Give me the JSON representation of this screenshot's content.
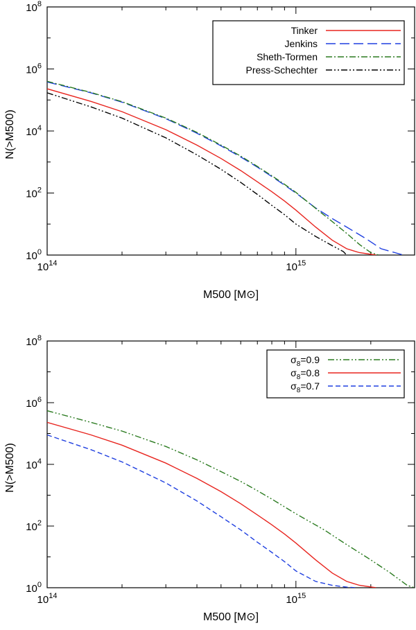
{
  "chart_data": [
    {
      "type": "line",
      "xscale": "log",
      "yscale": "log",
      "xlim": [
        100000000000000.0,
        3000000000000000.0
      ],
      "ylim": [
        1,
        100000000.0
      ],
      "xlabel": "M500 [M⊙]",
      "ylabel": "N(>M500)",
      "x_ticks": [
        {
          "base": "10",
          "exp": "14",
          "value": 100000000000000.0
        },
        {
          "base": "10",
          "exp": "15",
          "value": 1000000000000000.0
        }
      ],
      "y_ticks": [
        {
          "base": "10",
          "exp": "0",
          "value": 1
        },
        {
          "base": "10",
          "exp": "2",
          "value": 100
        },
        {
          "base": "10",
          "exp": "4",
          "value": 10000
        },
        {
          "base": "10",
          "exp": "6",
          "value": 1000000
        },
        {
          "base": "10",
          "exp": "8",
          "value": 100000000
        }
      ],
      "legend_position": "top-right",
      "series": [
        {
          "name": "Tinker",
          "color": "#e8251f",
          "dash": "solid",
          "x": [
            100000000000000.0,
            150000000000000.0,
            200000000000000.0,
            300000000000000.0,
            400000000000000.0,
            500000000000000.0,
            600000000000000.0,
            700000000000000.0,
            800000000000000.0,
            900000000000000.0,
            1000000000000000.0,
            1200000000000000.0,
            1400000000000000.0,
            1600000000000000.0,
            1800000000000000.0,
            2100000000000000.0
          ],
          "y": [
            230000,
            90000,
            42000,
            11000,
            3500,
            1300,
            530,
            230,
            110,
            55,
            28,
            8,
            3,
            1.6,
            1.2,
            1
          ]
        },
        {
          "name": "Jenkins",
          "color": "#1f3fe0",
          "dash": "long-dash",
          "x": [
            100000000000000.0,
            150000000000000.0,
            200000000000000.0,
            300000000000000.0,
            400000000000000.0,
            500000000000000.0,
            600000000000000.0,
            700000000000000.0,
            800000000000000.0,
            900000000000000.0,
            1000000000000000.0,
            1200000000000000.0,
            1400000000000000.0,
            1600000000000000.0,
            1900000000000000.0,
            2200000000000000.0,
            2500000000000000.0,
            2700000000000000.0
          ],
          "y": [
            380000,
            170000,
            85000,
            25000,
            8500,
            3300,
            1450,
            680,
            340,
            180,
            100,
            33,
            15,
            8,
            3.5,
            1.6,
            1.2,
            1
          ]
        },
        {
          "name": "Sheth-Tormen",
          "color": "#2a7a1f",
          "dash": "dash-dot",
          "x": [
            100000000000000.0,
            150000000000000.0,
            200000000000000.0,
            300000000000000.0,
            400000000000000.0,
            500000000000000.0,
            600000000000000.0,
            700000000000000.0,
            800000000000000.0,
            900000000000000.0,
            1000000000000000.0,
            1200000000000000.0,
            1400000000000000.0,
            1600000000000000.0,
            1800000000000000.0,
            2000000000000000.0,
            2150000000000000.0
          ],
          "y": [
            400000,
            175000,
            88000,
            26000,
            9000,
            3500,
            1550,
            720,
            360,
            190,
            105,
            32,
            12,
            5,
            2.2,
            1.2,
            1
          ]
        },
        {
          "name": "Press-Schechter",
          "color": "#000000",
          "dash": "dash-dot-dot",
          "x": [
            100000000000000.0,
            150000000000000.0,
            200000000000000.0,
            300000000000000.0,
            400000000000000.0,
            500000000000000.0,
            600000000000000.0,
            700000000000000.0,
            800000000000000.0,
            900000000000000.0,
            1000000000000000.0,
            1200000000000000.0,
            1400000000000000.0,
            1550000000000000.0,
            1600000000000000.0
          ],
          "y": [
            170000,
            60000,
            26000,
            6000,
            1700,
            580,
            220,
            90,
            40,
            20,
            10,
            4,
            2,
            1.3,
            1
          ]
        }
      ]
    },
    {
      "type": "line",
      "xscale": "log",
      "yscale": "log",
      "xlim": [
        100000000000000.0,
        3000000000000000.0
      ],
      "ylim": [
        1,
        100000000.0
      ],
      "xlabel": "M500 [M⊙]",
      "ylabel": "N(>M500)",
      "x_ticks": [
        {
          "base": "10",
          "exp": "14",
          "value": 100000000000000.0
        },
        {
          "base": "10",
          "exp": "15",
          "value": 1000000000000000.0
        }
      ],
      "y_ticks": [
        {
          "base": "10",
          "exp": "0",
          "value": 1
        },
        {
          "base": "10",
          "exp": "2",
          "value": 100
        },
        {
          "base": "10",
          "exp": "4",
          "value": 10000
        },
        {
          "base": "10",
          "exp": "6",
          "value": 1000000
        },
        {
          "base": "10",
          "exp": "8",
          "value": 100000000
        }
      ],
      "legend_position": "top-right",
      "series": [
        {
          "name": "σ8=0.9",
          "sym": "σ",
          "symsub": "8",
          "val": "=0.9",
          "color": "#2a7a1f",
          "dash": "dash-dot-dot",
          "x": [
            100000000000000.0,
            150000000000000.0,
            200000000000000.0,
            300000000000000.0,
            400000000000000.0,
            500000000000000.0,
            600000000000000.0,
            700000000000000.0,
            800000000000000.0,
            900000000000000.0,
            1000000000000000.0,
            1300000000000000.0,
            1600000000000000.0,
            2000000000000000.0,
            2400000000000000.0,
            2800000000000000.0,
            3000000000000000.0
          ],
          "y": [
            550000,
            230000,
            120000,
            38000,
            14000,
            5800,
            2800,
            1400,
            750,
            420,
            250,
            75,
            25,
            8,
            3,
            1.2,
            1
          ]
        },
        {
          "name": "σ8=0.8",
          "sym": "σ",
          "symsub": "8",
          "val": "=0.8",
          "color": "#e8251f",
          "dash": "solid",
          "x": [
            100000000000000.0,
            150000000000000.0,
            200000000000000.0,
            300000000000000.0,
            400000000000000.0,
            500000000000000.0,
            600000000000000.0,
            700000000000000.0,
            800000000000000.0,
            900000000000000.0,
            1000000000000000.0,
            1200000000000000.0,
            1400000000000000.0,
            1600000000000000.0,
            1800000000000000.0,
            2100000000000000.0
          ],
          "y": [
            230000,
            90000,
            42000,
            11000,
            3500,
            1300,
            530,
            230,
            110,
            55,
            28,
            8,
            3,
            1.6,
            1.2,
            1
          ]
        },
        {
          "name": "σ8=0.7",
          "sym": "σ",
          "symsub": "8",
          "val": "=0.7",
          "color": "#1f3fe0",
          "dash": "short-dash",
          "x": [
            100000000000000.0,
            150000000000000.0,
            200000000000000.0,
            300000000000000.0,
            400000000000000.0,
            500000000000000.0,
            600000000000000.0,
            700000000000000.0,
            800000000000000.0,
            900000000000000.0,
            1000000000000000.0,
            1200000000000000.0,
            1400000000000000.0,
            1600000000000000.0,
            1750000000000000.0
          ],
          "y": [
            90000,
            30000,
            12000,
            2500,
            650,
            200,
            75,
            30,
            14,
            7,
            3.5,
            1.6,
            1.2,
            1.05,
            1
          ]
        }
      ]
    }
  ]
}
